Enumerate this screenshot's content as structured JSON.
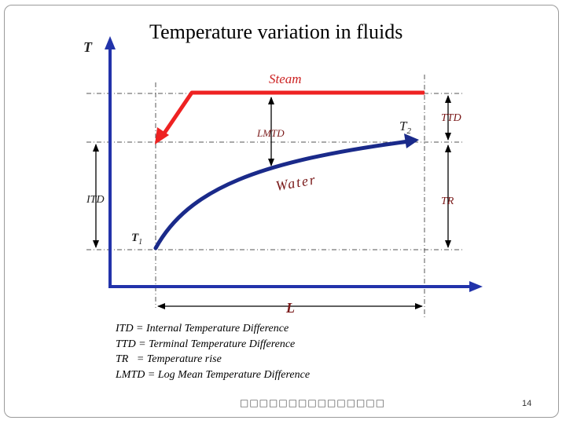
{
  "slide": {
    "title": "Temperature variation in fluids",
    "page_number": "14",
    "footer": "□□□□□□□□□□□□□□□"
  },
  "diagram": {
    "labels": {
      "y_axis": "T",
      "x_axis": "L",
      "steam": "Steam",
      "water": "Water",
      "lmtd": "LMTD",
      "t1": "T",
      "t1_sub": "1",
      "t2": "T",
      "t2_sub": "2",
      "itd": "ITD",
      "ttd": "TTD",
      "tr": "TR"
    },
    "colors": {
      "steam_line": "#ee2222",
      "water_line": "#1a2a8a",
      "axes": "#2233aa",
      "label_brown": "#7a1a1a"
    }
  },
  "legend": [
    "ITD = Internal Temperature Difference",
    "TTD = Terminal Temperature Difference",
    "TR   = Temperature rise",
    "LMTD = Log Mean Temperature Difference"
  ]
}
